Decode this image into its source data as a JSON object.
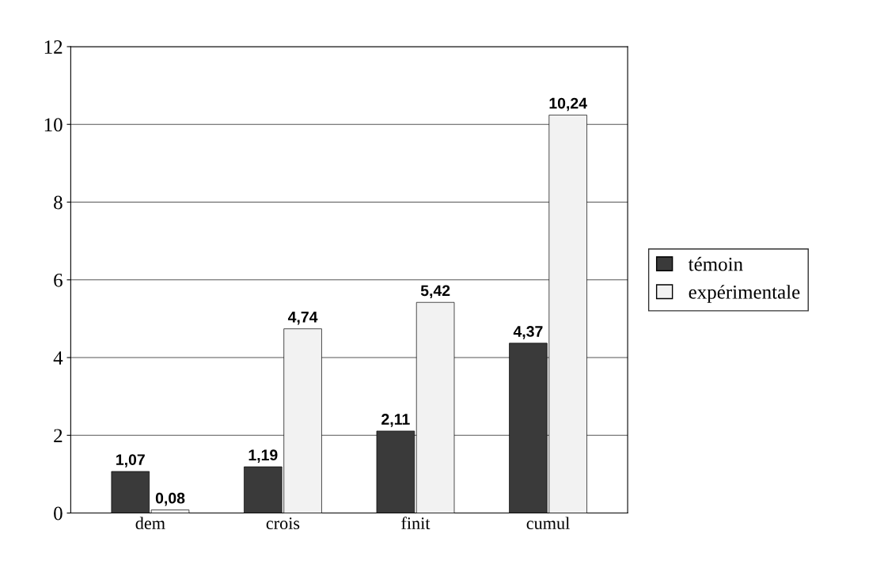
{
  "chart_data": {
    "type": "bar",
    "categories": [
      "dem",
      "crois",
      "finit",
      "cumul"
    ],
    "series": [
      {
        "name": "témoin",
        "color": "#3a3a3a",
        "values": [
          1.07,
          1.19,
          2.11,
          4.37
        ],
        "value_labels": [
          "1,07",
          "1,19",
          "2,11",
          "4,37"
        ]
      },
      {
        "name": "expérimentale",
        "color": "#f2f2f2",
        "values": [
          0.08,
          4.74,
          5.42,
          10.24
        ],
        "value_labels": [
          "0,08",
          "4,74",
          "5,42",
          "10,24"
        ]
      }
    ],
    "ylim": [
      0,
      12
    ],
    "yticks": [
      0,
      2,
      4,
      6,
      8,
      10,
      12
    ],
    "grid": "y",
    "legend": "right"
  }
}
